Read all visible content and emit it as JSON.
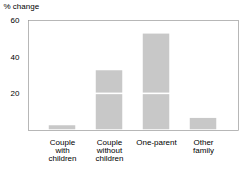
{
  "chart_data": {
    "type": "bar",
    "stacked": true,
    "categories": [
      "Couple\nwith\nchildren",
      "Couple\nwithout\nchildren",
      "One-parent",
      "Other\nfamily"
    ],
    "series": [
      {
        "color": "#c8c8c8",
        "values": [
          3,
          20,
          20,
          7
        ]
      },
      {
        "color": "#c8c8c8",
        "values": [
          0,
          13,
          33,
          0
        ]
      }
    ],
    "ylabel": "% change",
    "ylim": [
      0,
      60
    ],
    "yticks": [
      20,
      40,
      60
    ],
    "grid": false
  }
}
